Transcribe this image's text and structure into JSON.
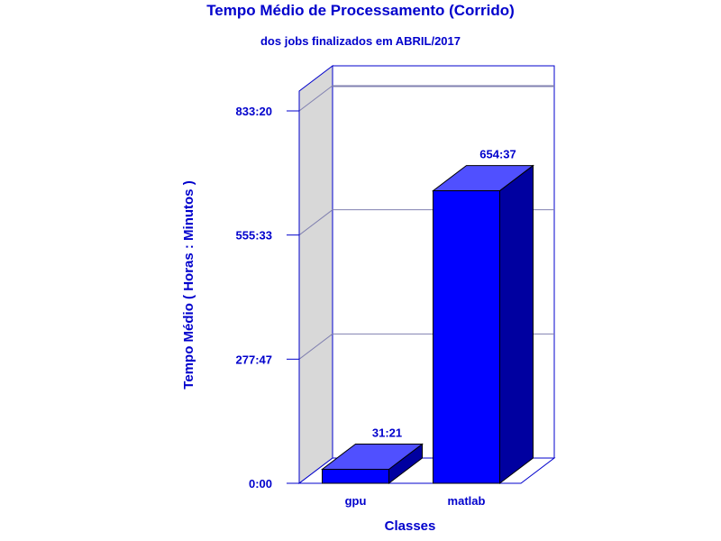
{
  "chart_data": {
    "type": "bar",
    "title": "Tempo Médio de Processamento (Corrido)",
    "subtitle": "dos jobs finalizados em ABRIL/2017",
    "xlabel": "Classes",
    "ylabel": "Tempo Médio ( Horas : Minutos )",
    "categories": [
      "gpu",
      "matlab"
    ],
    "values_minutes": [
      1881,
      39277
    ],
    "value_labels": [
      "31:21",
      "654:37"
    ],
    "yticks_minutes": [
      0,
      16667,
      33333,
      50000
    ],
    "ytick_labels": [
      "0:00",
      "277:47",
      "555:33",
      "833:20"
    ],
    "ylim_minutes": [
      0,
      50000
    ],
    "grid": true,
    "legend": "none",
    "colors": {
      "text": "#0000cc",
      "bar_front": "#0000ff",
      "bar_top": "#5050ff",
      "bar_side": "#0000a0",
      "frame": "#0000cc",
      "wall": "#d8d8d8",
      "grid": "#8080b0"
    }
  }
}
